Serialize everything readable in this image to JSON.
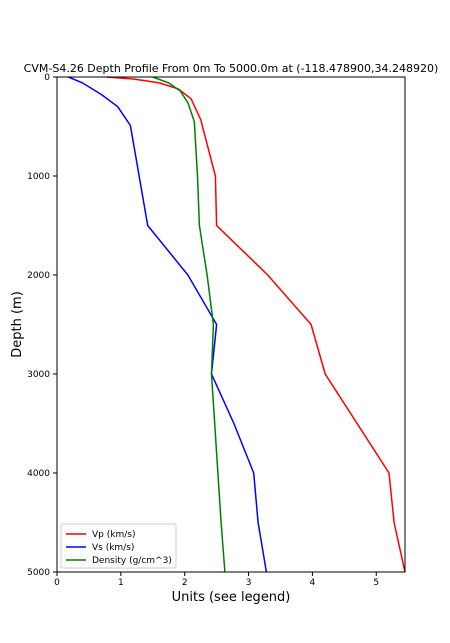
{
  "chart_data": {
    "type": "line",
    "title": "CVM-S4.26 Depth Profile From 0m To 5000.0m at (-118.478900,34.248920)",
    "xlabel": "Units (see legend)",
    "ylabel": "Depth (m)",
    "xlim": [
      0,
      5.45
    ],
    "ylim": [
      5000,
      0
    ],
    "y_inverted": true,
    "xticks": [
      "0",
      "1",
      "2",
      "3",
      "4",
      "5"
    ],
    "yticks": [
      "0",
      "1000",
      "2000",
      "3000",
      "4000",
      "5000"
    ],
    "grid": false,
    "legend_position": "lower-left",
    "series": [
      {
        "name": "Vp (km/s)",
        "color": "#ff0000",
        "points": [
          [
            0.78,
            0
          ],
          [
            1.2,
            20
          ],
          [
            1.6,
            60
          ],
          [
            1.9,
            120
          ],
          [
            2.1,
            220
          ],
          [
            2.25,
            430
          ],
          [
            2.48,
            1000
          ],
          [
            2.5,
            1500
          ],
          [
            3.3,
            2000
          ],
          [
            3.98,
            2500
          ],
          [
            4.2,
            3000
          ],
          [
            5.2,
            4000
          ],
          [
            5.28,
            4500
          ],
          [
            5.45,
            5000
          ]
        ]
      },
      {
        "name": "Vs (km/s)",
        "color": "#0000ff",
        "points": [
          [
            0.18,
            0
          ],
          [
            0.4,
            60
          ],
          [
            0.7,
            180
          ],
          [
            0.95,
            300
          ],
          [
            1.15,
            490
          ],
          [
            1.42,
            1500
          ],
          [
            2.05,
            2000
          ],
          [
            2.5,
            2500
          ],
          [
            2.42,
            3000
          ],
          [
            2.77,
            3500
          ],
          [
            3.08,
            4000
          ],
          [
            3.15,
            4500
          ],
          [
            3.28,
            5000
          ]
        ]
      },
      {
        "name": "Density (g/cm^3)",
        "color": "#008000",
        "points": [
          [
            1.5,
            0
          ],
          [
            1.75,
            60
          ],
          [
            1.93,
            140
          ],
          [
            2.05,
            260
          ],
          [
            2.15,
            450
          ],
          [
            2.2,
            1000
          ],
          [
            2.23,
            1500
          ],
          [
            2.35,
            2000
          ],
          [
            2.45,
            2500
          ],
          [
            2.42,
            3000
          ],
          [
            2.52,
            4000
          ],
          [
            2.57,
            4500
          ],
          [
            2.63,
            5000
          ]
        ]
      }
    ]
  }
}
